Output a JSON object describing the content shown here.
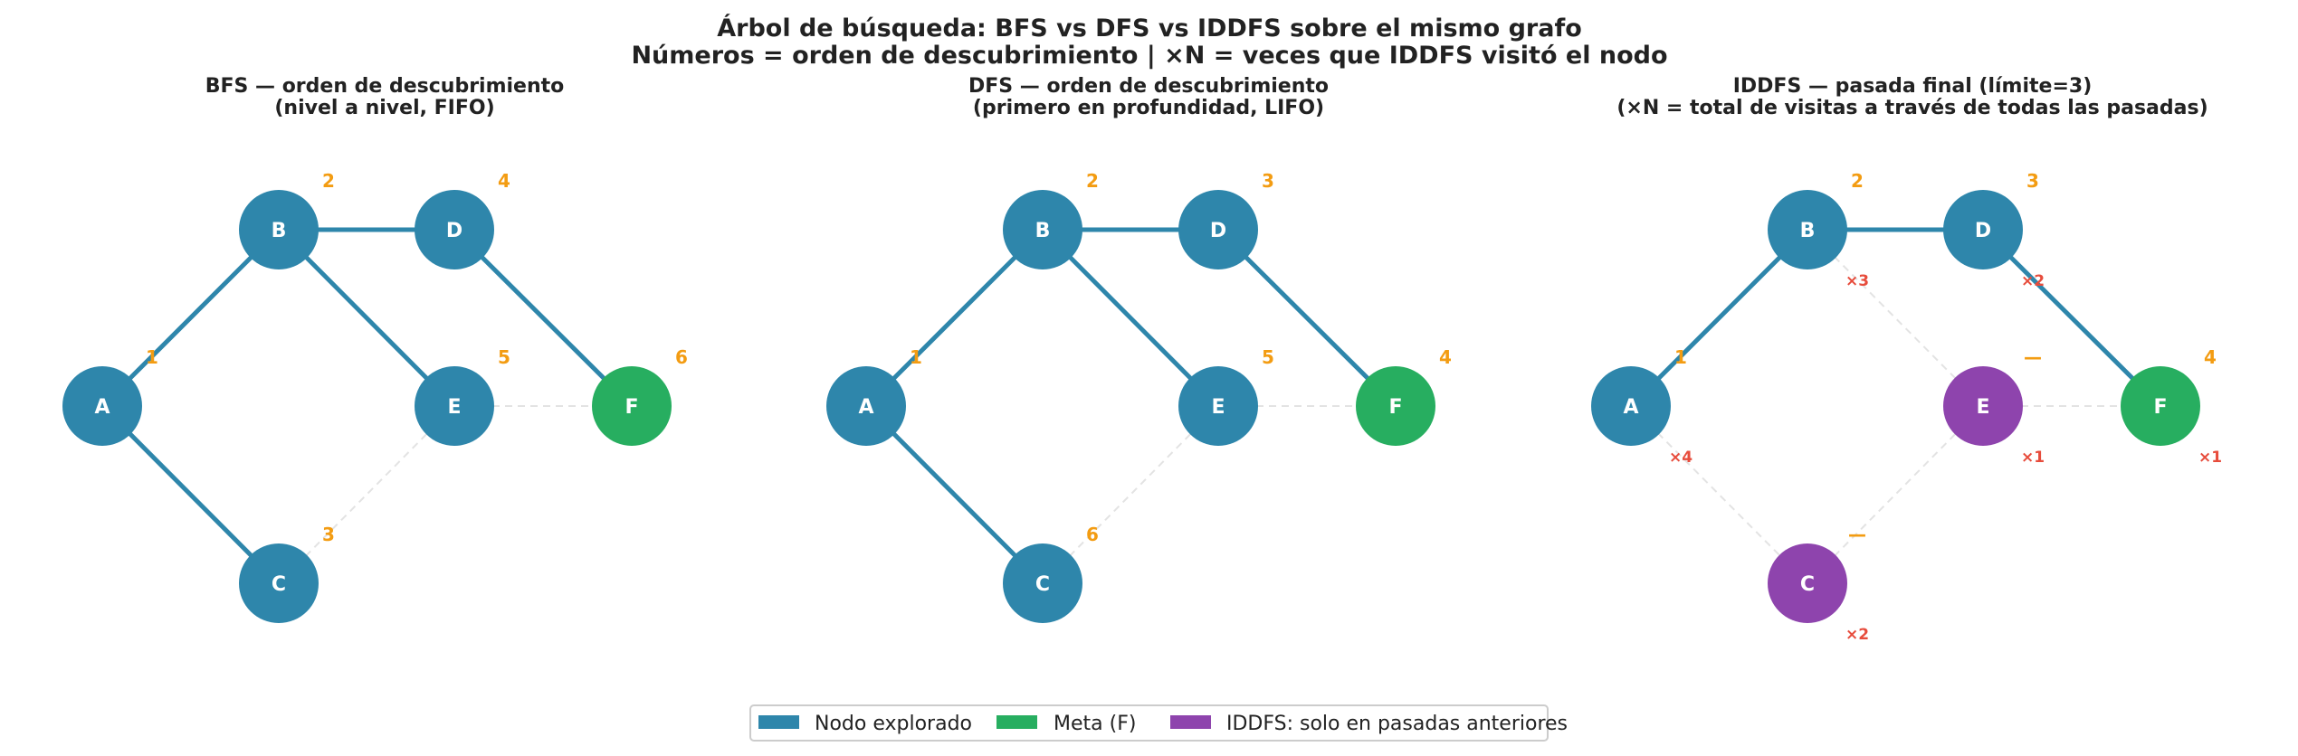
{
  "title": {
    "line1": "Árbol de búsqueda: BFS vs DFS vs IDDFS sobre el mismo grafo",
    "line2": "Números = orden de descubrimiento  |  ×N = veces que IDDFS visitó el nodo"
  },
  "colors": {
    "explored": "#2e86ab",
    "goal": "#27ae60",
    "previous": "#8e44ad",
    "order": "#f39c12",
    "visits": "#e74c3c",
    "dashed": "#e3e3e3"
  },
  "edges": [
    [
      "A",
      "B"
    ],
    [
      "A",
      "C"
    ],
    [
      "B",
      "D"
    ],
    [
      "B",
      "E"
    ],
    [
      "D",
      "F"
    ],
    [
      "C",
      "E"
    ],
    [
      "E",
      "F"
    ]
  ],
  "panels": [
    {
      "title1": "BFS — orden de descubrimiento",
      "title2": "(nivel a nivel, FIFO)",
      "tree_edges": [
        [
          "A",
          "B"
        ],
        [
          "A",
          "C"
        ],
        [
          "B",
          "D"
        ],
        [
          "B",
          "E"
        ],
        [
          "D",
          "F"
        ]
      ],
      "nodes": {
        "A": {
          "state": "explored",
          "order": "1"
        },
        "B": {
          "state": "explored",
          "order": "2"
        },
        "C": {
          "state": "explored",
          "order": "3"
        },
        "D": {
          "state": "explored",
          "order": "4"
        },
        "E": {
          "state": "explored",
          "order": "5"
        },
        "F": {
          "state": "goal",
          "order": "6"
        }
      }
    },
    {
      "title1": "DFS — orden de descubrimiento",
      "title2": "(primero en profundidad, LIFO)",
      "tree_edges": [
        [
          "A",
          "B"
        ],
        [
          "A",
          "C"
        ],
        [
          "B",
          "D"
        ],
        [
          "B",
          "E"
        ],
        [
          "D",
          "F"
        ]
      ],
      "nodes": {
        "A": {
          "state": "explored",
          "order": "1"
        },
        "B": {
          "state": "explored",
          "order": "2"
        },
        "D": {
          "state": "explored",
          "order": "3"
        },
        "F": {
          "state": "goal",
          "order": "4"
        },
        "E": {
          "state": "explored",
          "order": "5"
        },
        "C": {
          "state": "explored",
          "order": "6"
        }
      }
    },
    {
      "title1": "IDDFS — pasada final (límite=3)",
      "title2": "(×N = total de visitas a través de todas las pasadas)",
      "tree_edges": [
        [
          "A",
          "B"
        ],
        [
          "B",
          "D"
        ],
        [
          "D",
          "F"
        ]
      ],
      "nodes": {
        "A": {
          "state": "explored",
          "order": "1",
          "visits": "×4"
        },
        "B": {
          "state": "explored",
          "order": "2",
          "visits": "×3"
        },
        "D": {
          "state": "explored",
          "order": "3",
          "visits": "×2"
        },
        "F": {
          "state": "goal",
          "order": "4",
          "visits": "×1"
        },
        "E": {
          "state": "previous",
          "order": "—",
          "visits": "×1"
        },
        "C": {
          "state": "previous",
          "order": "—",
          "visits": "×2"
        }
      }
    }
  ],
  "legend": [
    {
      "label": "Nodo explorado",
      "color": "#2e86ab"
    },
    {
      "label": "Meta (F)",
      "color": "#27ae60"
    },
    {
      "label": "IDDFS: solo en pasadas anteriores",
      "color": "#8e44ad"
    }
  ]
}
